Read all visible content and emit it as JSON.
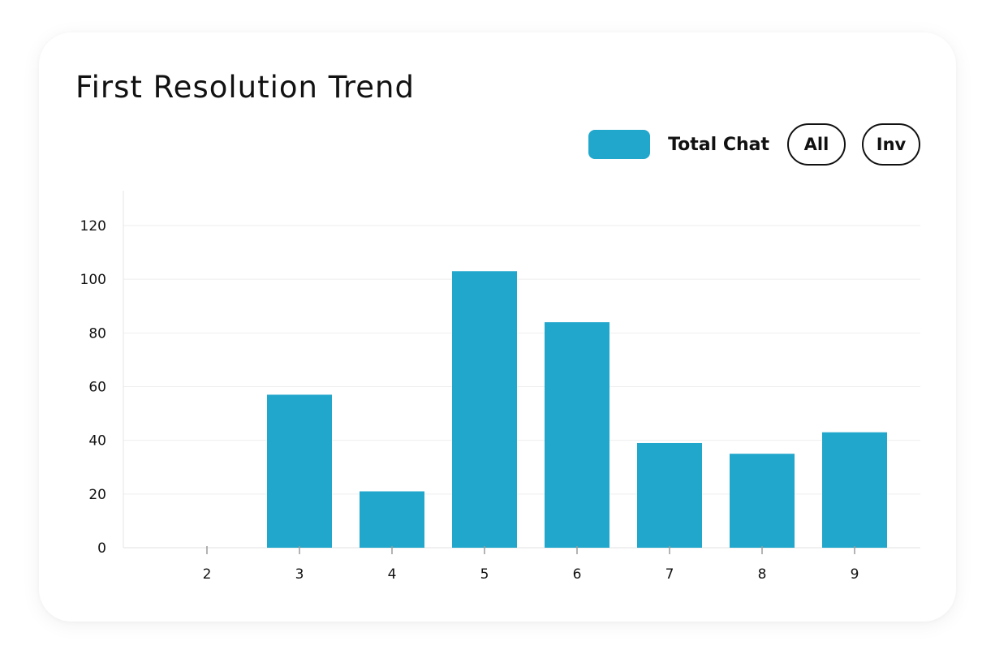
{
  "header": {
    "title": "First Resolution Trend"
  },
  "legend": {
    "series_label": "Total Chat",
    "swatch_color": "#21a7cc"
  },
  "filters": {
    "all_label": "All",
    "inv_label": "Inv"
  },
  "chart_data": {
    "type": "bar",
    "title": "First Resolution Trend",
    "categories": [
      "2",
      "3",
      "4",
      "5",
      "6",
      "7",
      "8",
      "9"
    ],
    "series": [
      {
        "name": "Total Chat",
        "color": "#21a7cc",
        "values": [
          0,
          57,
          21,
          103,
          84,
          39,
          35,
          43
        ]
      }
    ],
    "xlabel": "",
    "ylabel": "",
    "ylim": [
      0,
      120
    ],
    "yticks": [
      0,
      20,
      40,
      60,
      80,
      100,
      120
    ],
    "grid": true,
    "legend_position": "top-right"
  }
}
